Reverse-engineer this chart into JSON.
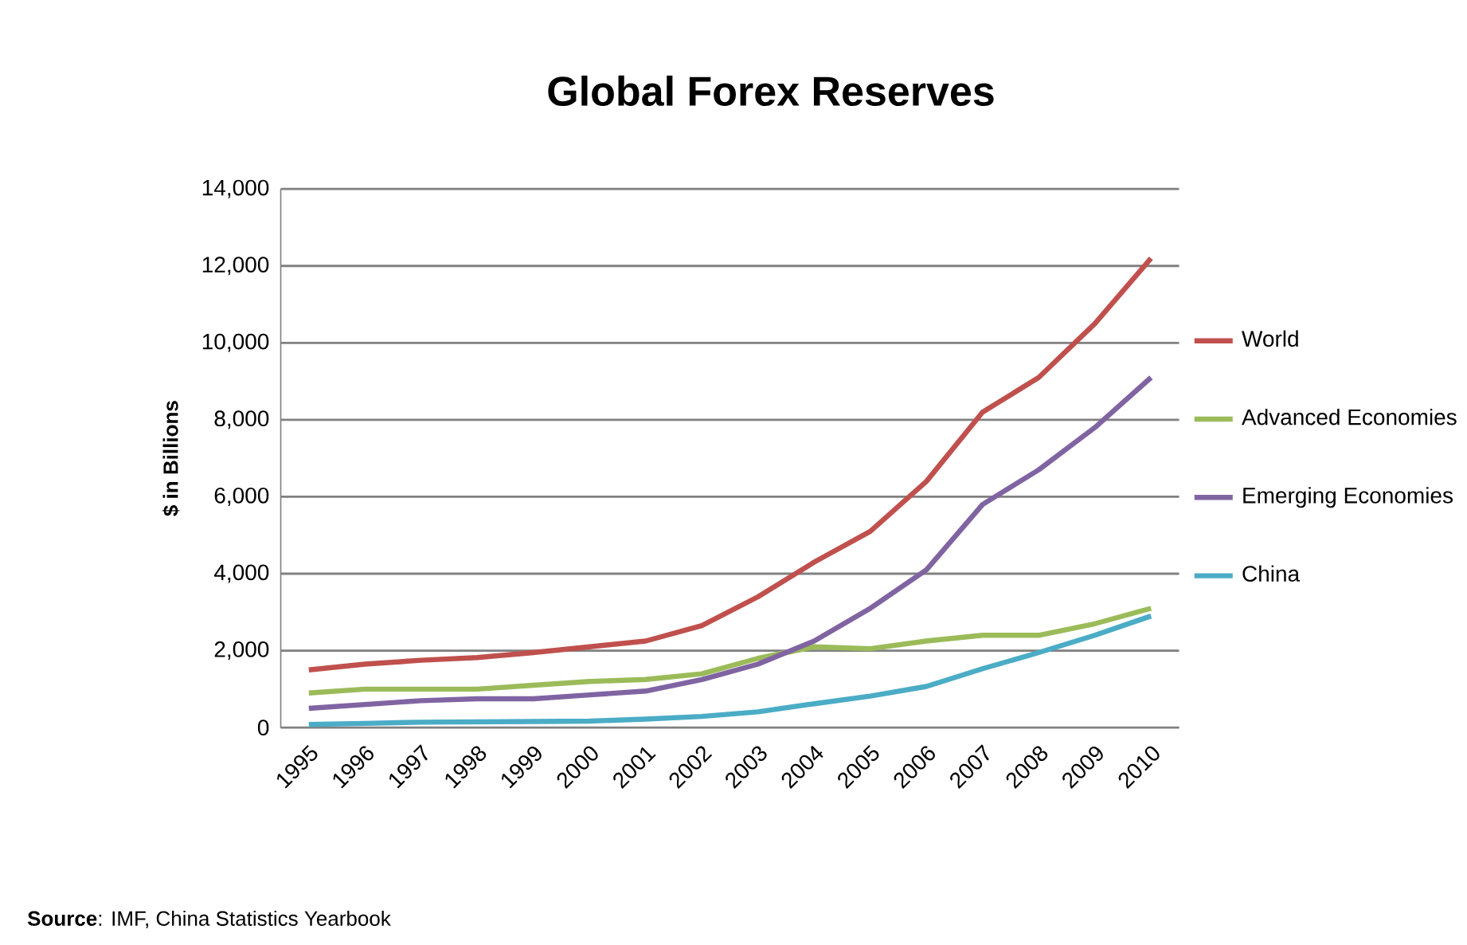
{
  "chart_data": {
    "type": "line",
    "title": "Global Forex Reserves",
    "ylabel": "$ in Billions",
    "categories": [
      "1995",
      "1996",
      "1997",
      "1998",
      "1999",
      "2000",
      "2001",
      "2002",
      "2003",
      "2004",
      "2005",
      "2006",
      "2007",
      "2008",
      "2009",
      "2010"
    ],
    "series": [
      {
        "name": "World",
        "color": "#c0504d",
        "values": [
          1500,
          1650,
          1750,
          1820,
          1950,
          2100,
          2250,
          2650,
          3400,
          4300,
          5100,
          6400,
          8200,
          9100,
          10500,
          12200
        ]
      },
      {
        "name": "Advanced Economies",
        "color": "#9bbb59",
        "values": [
          900,
          1000,
          1000,
          1000,
          1100,
          1200,
          1250,
          1400,
          1800,
          2100,
          2050,
          2250,
          2400,
          2400,
          2700,
          3100
        ]
      },
      {
        "name": "Emerging Economies",
        "color": "#8064a2",
        "values": [
          500,
          600,
          700,
          750,
          750,
          850,
          950,
          1250,
          1650,
          2250,
          3100,
          4100,
          5800,
          6700,
          7800,
          9100
        ]
      },
      {
        "name": "China",
        "color": "#4bacc6",
        "values": [
          80,
          110,
          140,
          150,
          160,
          170,
          220,
          290,
          410,
          620,
          820,
          1070,
          1530,
          1950,
          2400,
          2900
        ]
      }
    ],
    "ylim": [
      0,
      14000
    ],
    "yticks": [
      0,
      {
        "value": 2000,
        "label": "2,000"
      },
      {
        "value": 4000,
        "label": "4,000"
      },
      {
        "value": 6000,
        "label": "6,000"
      },
      {
        "value": 8000,
        "label": "8,000"
      },
      {
        "value": 10000,
        "label": "10,000"
      },
      {
        "value": 12000,
        "label": "12,000"
      },
      {
        "value": 14000,
        "label": "14,000"
      }
    ],
    "grid": "y",
    "legend": "right",
    "marker": "none",
    "line_style": "solid",
    "annotations": [
      "**Source**: IMF, China Statistics Yearbook"
    ]
  }
}
